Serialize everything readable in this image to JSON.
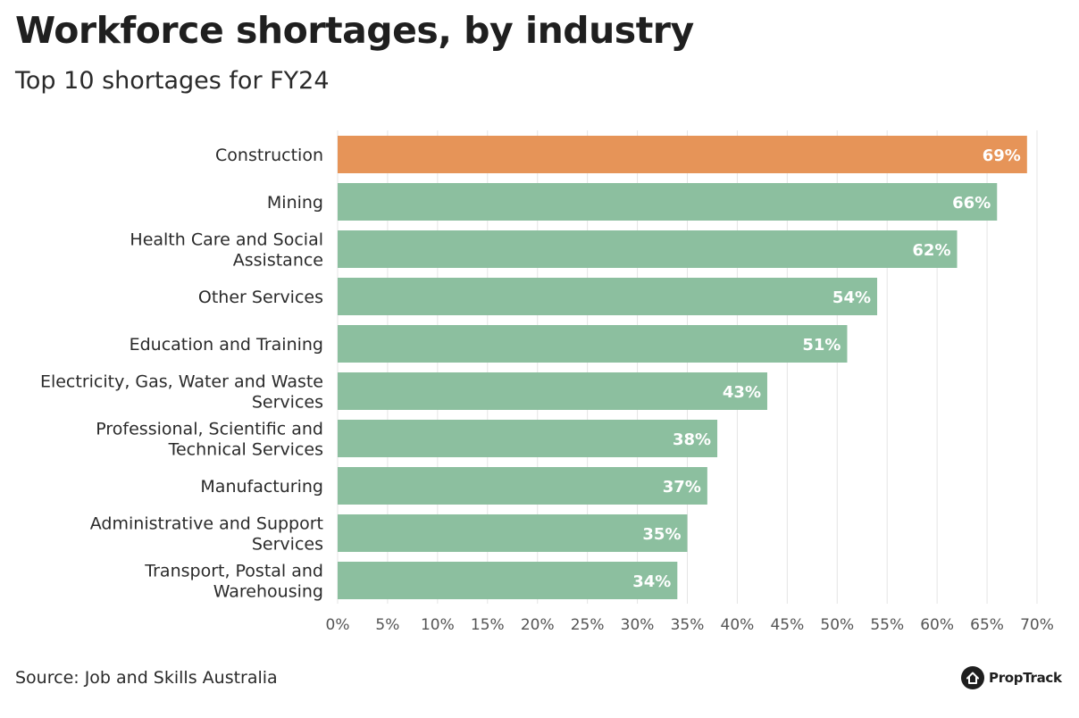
{
  "title": "Workforce shortages, by industry",
  "subtitle": "Top 10 shortages for FY24",
  "source": "Source: Job and Skills Australia",
  "brand": {
    "name": "PropTrack",
    "icon": "house-logo-icon"
  },
  "colors": {
    "highlight": "#E69458",
    "default": "#8CBF9F",
    "grid": "#e4e4e4",
    "label": "#ffffff"
  },
  "chart_data": {
    "type": "bar",
    "orientation": "horizontal",
    "title": "Workforce shortages, by industry",
    "subtitle": "Top 10 shortages for FY24",
    "categories": [
      [
        "Construction"
      ],
      [
        "Mining"
      ],
      [
        "Health Care and Social",
        "Assistance"
      ],
      [
        "Other Services"
      ],
      [
        "Education and Training"
      ],
      [
        "Electricity, Gas, Water and Waste",
        "Services"
      ],
      [
        "Professional, Scientific and",
        "Technical Services"
      ],
      [
        "Manufacturing"
      ],
      [
        "Administrative and Support",
        "Services"
      ],
      [
        "Transport, Postal and",
        "Warehousing"
      ]
    ],
    "values": [
      69,
      66,
      62,
      54,
      51,
      43,
      38,
      37,
      35,
      34
    ],
    "data_labels": [
      "69%",
      "66%",
      "62%",
      "54%",
      "51%",
      "43%",
      "38%",
      "37%",
      "35%",
      "34%"
    ],
    "highlight_index": 0,
    "xlim": [
      0,
      70
    ],
    "xticks": [
      0,
      5,
      10,
      15,
      20,
      25,
      30,
      35,
      40,
      45,
      50,
      55,
      60,
      65,
      70
    ],
    "xtick_labels": [
      "0%",
      "5%",
      "10%",
      "15%",
      "20%",
      "25%",
      "30%",
      "35%",
      "40%",
      "45%",
      "50%",
      "55%",
      "60%",
      "65%",
      "70%"
    ],
    "xlabel": "",
    "ylabel": "",
    "grid": "vertical"
  }
}
